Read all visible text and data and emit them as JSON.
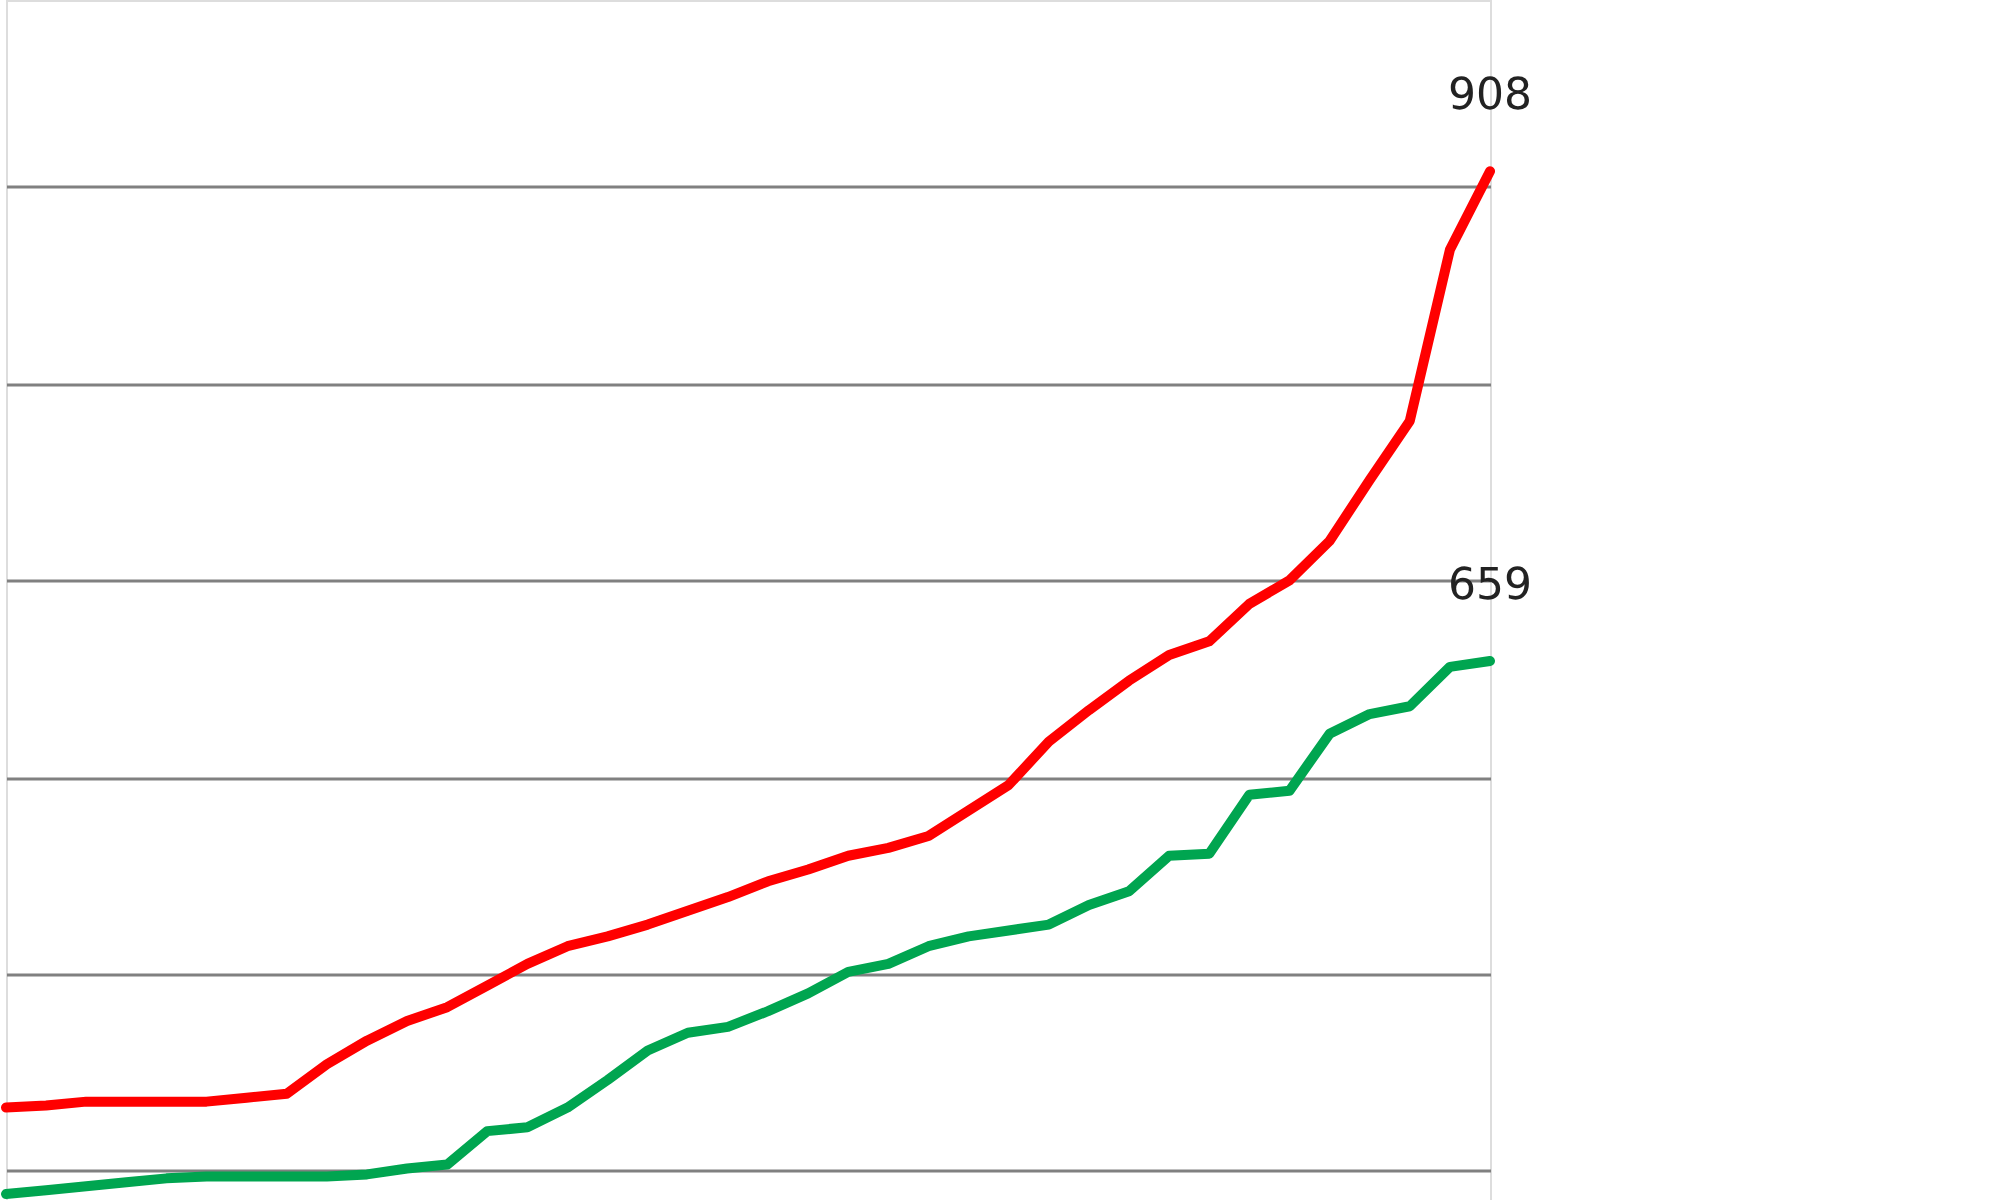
{
  "chart_data": {
    "type": "line",
    "categories": [
      null,
      null,
      null,
      null,
      null,
      null,
      null,
      null,
      null,
      null,
      null,
      null,
      null,
      null,
      null,
      null,
      null,
      null,
      null,
      null,
      null,
      null,
      null,
      null,
      null,
      null,
      null,
      null,
      null,
      null,
      null,
      null,
      null,
      null,
      null,
      null,
      null,
      null
    ],
    "series": [
      {
        "color": "#ff0000",
        "values": [
          432,
          433,
          435,
          435,
          435,
          435,
          437,
          439,
          454,
          466,
          476,
          483,
          494,
          505,
          514,
          519,
          525,
          532,
          539,
          547,
          553,
          560,
          564,
          570,
          583,
          596,
          618,
          634,
          649,
          662,
          669,
          688,
          700,
          720,
          751,
          781,
          868,
          908
        ],
        "value_labels": [
          null,
          null,
          null,
          null,
          null,
          null,
          null,
          null,
          null,
          null,
          null,
          null,
          null,
          null,
          null,
          null,
          null,
          null,
          null,
          null,
          null,
          null,
          null,
          null,
          null,
          null,
          null,
          null,
          null,
          null,
          null,
          null,
          null,
          null,
          null,
          null,
          null,
          "908"
        ]
      },
      {
        "color": "#00a550",
        "values": [
          388,
          390,
          392,
          394,
          396,
          397,
          397,
          397,
          397,
          398,
          401,
          403,
          420,
          422,
          432,
          446,
          461,
          470,
          473,
          481,
          490,
          501,
          505,
          514,
          519,
          522,
          525,
          535,
          542,
          560,
          561,
          591,
          593,
          622,
          632,
          636,
          656,
          659
        ],
        "value_labels": [
          null,
          null,
          null,
          null,
          null,
          null,
          null,
          null,
          null,
          null,
          null,
          null,
          null,
          null,
          null,
          null,
          null,
          null,
          null,
          null,
          null,
          null,
          null,
          null,
          null,
          null,
          null,
          null,
          null,
          null,
          null,
          null,
          null,
          null,
          null,
          null,
          null,
          "659"
        ]
      }
    ],
    "ylim": [
      385,
      995
    ],
    "yticks": [
      {
        "value": 400,
        "label": null
      },
      {
        "value": 500,
        "label": null
      },
      {
        "value": 600,
        "label": null
      },
      {
        "value": 700,
        "label": null
      },
      {
        "value": 800,
        "label": null
      },
      {
        "value": 900,
        "label": null
      }
    ],
    "grid": "y",
    "line_style": "solid",
    "marker": "none"
  }
}
